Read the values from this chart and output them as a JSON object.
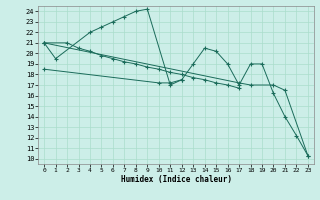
{
  "xlabel": "Humidex (Indice chaleur)",
  "bg_color": "#cceee8",
  "grid_color": "#aaddcc",
  "line_color": "#1a6b5a",
  "xlim": [
    -0.5,
    23.5
  ],
  "ylim": [
    9.5,
    24.5
  ],
  "xticks": [
    0,
    1,
    2,
    3,
    4,
    5,
    6,
    7,
    8,
    9,
    10,
    11,
    12,
    13,
    14,
    15,
    16,
    17,
    18,
    19,
    20,
    21,
    22,
    23
  ],
  "yticks": [
    10,
    11,
    12,
    13,
    14,
    15,
    16,
    17,
    18,
    19,
    20,
    21,
    22,
    23,
    24
  ],
  "line1_x": [
    0,
    1,
    4,
    5,
    6,
    7,
    8,
    9,
    11,
    12
  ],
  "line1_y": [
    21,
    19.5,
    22,
    22.5,
    23,
    23.5,
    24,
    24.2,
    17,
    17.5
  ],
  "line2_x": [
    0,
    2,
    3,
    4,
    5,
    6,
    7,
    8,
    9,
    10,
    11,
    12,
    13,
    14,
    15,
    16,
    17
  ],
  "line2_y": [
    21,
    21,
    20.5,
    20.2,
    19.8,
    19.5,
    19.2,
    19.0,
    18.7,
    18.5,
    18.2,
    18.0,
    17.7,
    17.5,
    17.2,
    17.0,
    16.7
  ],
  "line3_x": [
    0,
    10,
    11,
    12,
    13,
    14,
    15,
    16,
    17,
    18,
    19,
    20,
    21,
    22,
    23
  ],
  "line3_y": [
    18.5,
    17.2,
    17.2,
    17.5,
    19.0,
    20.5,
    20.2,
    19.0,
    17.0,
    19.0,
    19.0,
    16.2,
    14.0,
    12.2,
    10.3
  ],
  "line4_x": [
    0,
    17,
    18,
    20,
    21,
    23
  ],
  "line4_y": [
    21,
    17.2,
    17.0,
    17.0,
    16.5,
    10.3
  ]
}
